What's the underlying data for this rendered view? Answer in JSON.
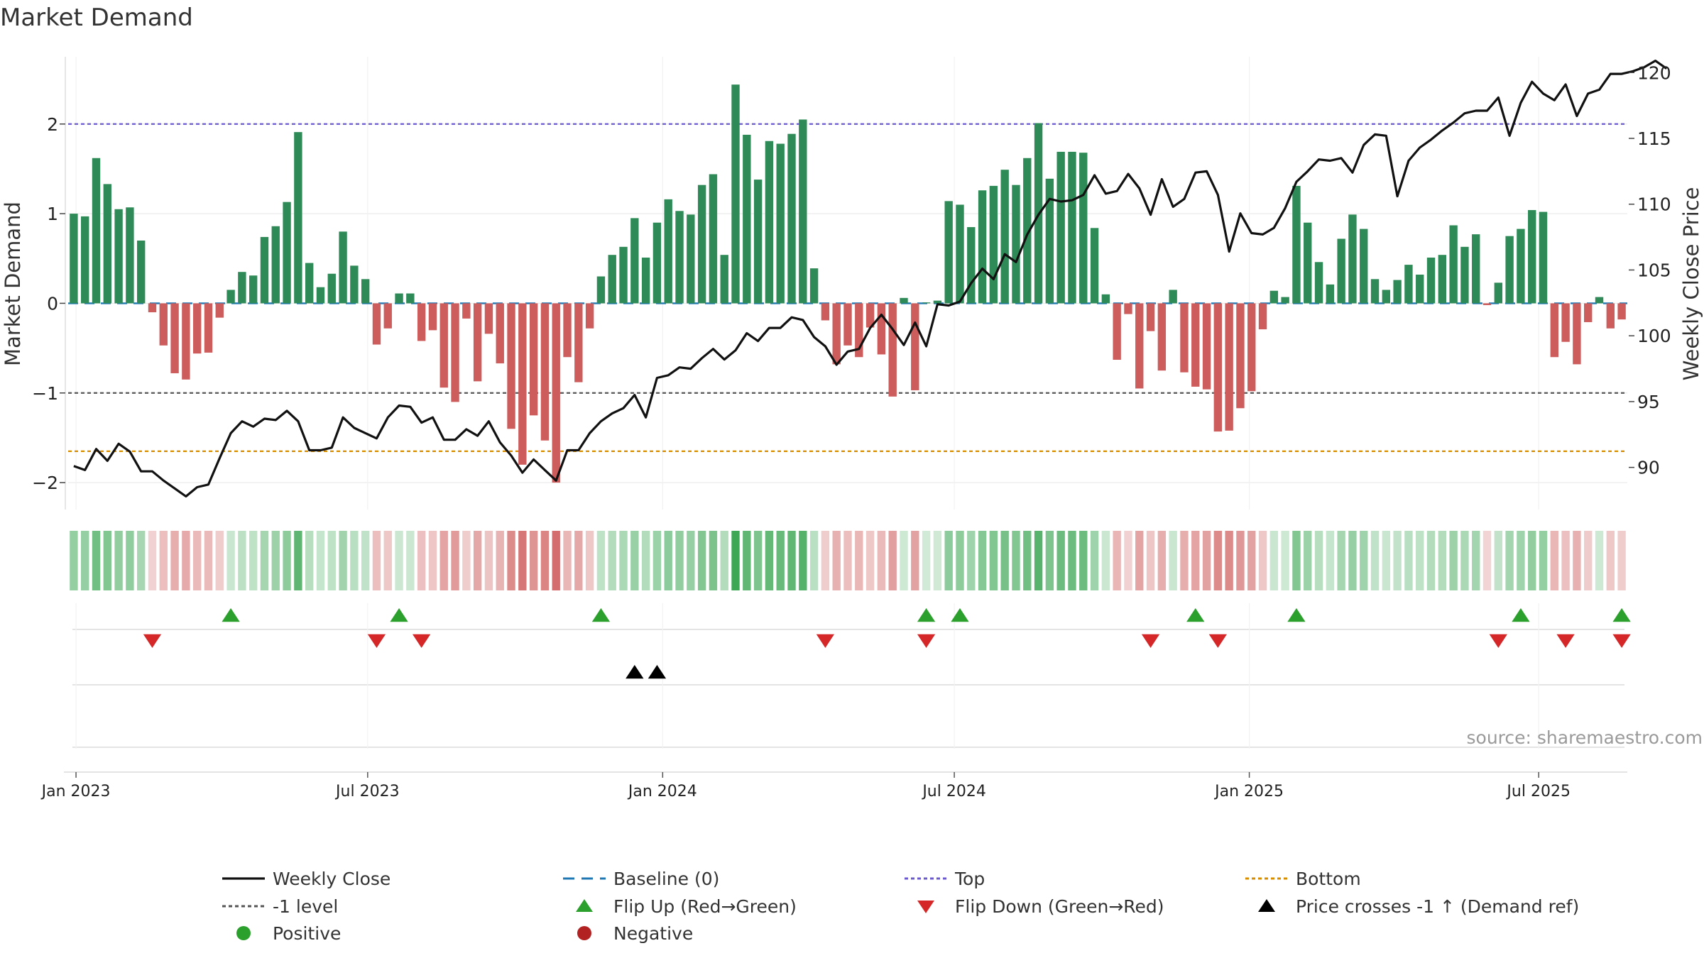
{
  "chart_data": {
    "type": "bar",
    "title": "Market Demand",
    "ylabel": "Market Demand",
    "ylabel_right": "Weekly Close Price",
    "ylim": [
      -2.3,
      2.75
    ],
    "ylim_right": [
      86.8,
      121.2
    ],
    "yticks": [
      2,
      1,
      0,
      -1,
      -2
    ],
    "ytick_labels": [
      "2",
      "1",
      "0",
      "−1",
      "−2"
    ],
    "yticks_right": [
      120,
      115,
      110,
      105,
      100,
      95,
      90
    ],
    "ytick_labels_right": [
      "120",
      "115",
      "110",
      "105",
      "100",
      "95",
      "90"
    ],
    "start_date": "2023-01-06",
    "x_ticks": [
      {
        "label": "Jan 2023",
        "week": 0.7
      },
      {
        "label": "Jul 2023",
        "week": 26.7
      },
      {
        "label": "Jan 2024",
        "week": 53.0
      },
      {
        "label": "Jul 2024",
        "week": 79.0
      },
      {
        "label": "Jan 2025",
        "week": 105.3
      },
      {
        "label": "Jul 2025",
        "week": 131.1
      }
    ],
    "levels": {
      "top": 2,
      "minus_one": -1,
      "bottom": -1.65,
      "baseline": 0
    },
    "demand": [
      1.0,
      0.97,
      1.62,
      1.33,
      1.05,
      1.07,
      0.7,
      -0.1,
      -0.47,
      -0.78,
      -0.85,
      -0.56,
      -0.55,
      -0.16,
      0.15,
      0.35,
      0.31,
      0.74,
      0.86,
      1.13,
      1.91,
      0.45,
      0.18,
      0.33,
      0.8,
      0.42,
      0.27,
      -0.46,
      -0.28,
      0.11,
      0.11,
      -0.42,
      -0.3,
      -0.94,
      -1.1,
      -0.17,
      -0.87,
      -0.34,
      -0.67,
      -1.4,
      -1.8,
      -1.25,
      -1.53,
      -2.0,
      -0.6,
      -0.88,
      -0.28,
      0.3,
      0.54,
      0.63,
      0.95,
      0.51,
      0.9,
      1.16,
      1.03,
      0.99,
      1.32,
      1.44,
      0.54,
      2.44,
      1.88,
      1.38,
      1.81,
      1.78,
      1.89,
      2.05,
      0.39,
      -0.19,
      -0.68,
      -0.47,
      -0.6,
      -0.27,
      -0.57,
      -1.04,
      0.06,
      -0.97,
      0.01,
      0.03,
      1.14,
      1.1,
      0.85,
      1.26,
      1.31,
      1.49,
      1.32,
      1.62,
      2.01,
      1.39,
      1.69,
      1.69,
      1.68,
      0.84,
      0.1,
      -0.63,
      -0.12,
      -0.95,
      -0.31,
      -0.75,
      0.15,
      -0.77,
      -0.93,
      -0.96,
      -1.43,
      -1.42,
      -1.17,
      -0.98,
      -0.29,
      0.14,
      0.07,
      1.31,
      0.9,
      0.46,
      0.21,
      0.72,
      0.99,
      0.83,
      0.27,
      0.15,
      0.26,
      0.43,
      0.32,
      0.51,
      0.54,
      0.87,
      0.63,
      0.77,
      -0.02,
      0.23,
      0.75,
      0.83,
      1.04,
      1.02,
      -0.6,
      -0.43,
      -0.68,
      -0.21,
      0.07,
      -0.28,
      -0.18
    ],
    "close": [
      90.1,
      89.8,
      91.4,
      90.5,
      91.8,
      91.2,
      89.7,
      89.7,
      89.0,
      88.4,
      87.8,
      88.5,
      88.7,
      90.7,
      92.6,
      93.5,
      93.1,
      93.7,
      93.6,
      94.3,
      93.5,
      91.3,
      91.3,
      91.5,
      93.8,
      93.0,
      92.6,
      92.2,
      93.8,
      94.7,
      94.6,
      93.4,
      93.8,
      92.1,
      92.1,
      92.9,
      92.4,
      93.5,
      91.9,
      90.9,
      89.6,
      90.6,
      89.8,
      89.0,
      91.3,
      91.3,
      92.6,
      93.5,
      94.1,
      94.5,
      95.5,
      93.8,
      96.8,
      97.0,
      97.6,
      97.5,
      98.3,
      99.0,
      98.2,
      98.9,
      100.2,
      99.6,
      100.6,
      100.6,
      101.4,
      101.2,
      99.9,
      99.2,
      97.8,
      98.8,
      99.0,
      100.6,
      101.6,
      100.5,
      99.3,
      101.0,
      99.2,
      102.4,
      102.3,
      102.6,
      104.0,
      105.1,
      104.3,
      106.2,
      105.6,
      107.7,
      109.2,
      110.4,
      110.2,
      110.3,
      110.7,
      112.2,
      110.8,
      111.0,
      112.3,
      111.2,
      109.2,
      111.9,
      109.8,
      110.4,
      112.4,
      112.5,
      110.7,
      106.4,
      109.3,
      107.8,
      107.7,
      108.2,
      109.7,
      111.7,
      112.5,
      113.4,
      113.3,
      113.5,
      112.4,
      114.5,
      115.3,
      115.2,
      110.6,
      113.3,
      114.3,
      114.9,
      115.6,
      116.2,
      116.9,
      117.1,
      117.1,
      118.1,
      115.2,
      117.7,
      119.3,
      118.4,
      117.9,
      119.1,
      116.7,
      118.4,
      118.7,
      119.9,
      119.9,
      120.1,
      120.4,
      120.9,
      120.3
    ],
    "flip_up_weeks": [
      14,
      29,
      47,
      76,
      79,
      100,
      109,
      129,
      138
    ],
    "flip_down_weeks": [
      7,
      27,
      31,
      67,
      76,
      96,
      102,
      127,
      133,
      138
    ],
    "price_cross_weeks": [
      50,
      52
    ],
    "watermark": "source: sharemaestro.com",
    "legend": [
      {
        "label": "Weekly Close",
        "kind": "line",
        "color": "#111111"
      },
      {
        "label": "Baseline (0)",
        "kind": "dash",
        "color": "#1f77b4"
      },
      {
        "label": "Top",
        "kind": "dot",
        "color": "#6a5acd"
      },
      {
        "label": "Bottom",
        "kind": "dot",
        "color": "#d88c00"
      },
      {
        "label": "-1 level",
        "kind": "dot",
        "color": "#555555"
      },
      {
        "label": "Flip Up (Red→Green)",
        "kind": "tri-up",
        "color": "#2ca02c"
      },
      {
        "label": "Flip Down (Green→Red)",
        "kind": "tri-down",
        "color": "#d62728"
      },
      {
        "label": "Price crosses -1 ↑ (Demand ref)",
        "kind": "tri-up",
        "color": "#000000"
      },
      {
        "label": "Positive",
        "kind": "circle",
        "color": "#2ca02c"
      },
      {
        "label": "Negative",
        "kind": "circle",
        "color": "#b22222"
      }
    ],
    "colors": {
      "positive": "#2e8b57",
      "negative": "#cd5c5c",
      "close": "#111111",
      "grid": "#ebebeb"
    }
  }
}
